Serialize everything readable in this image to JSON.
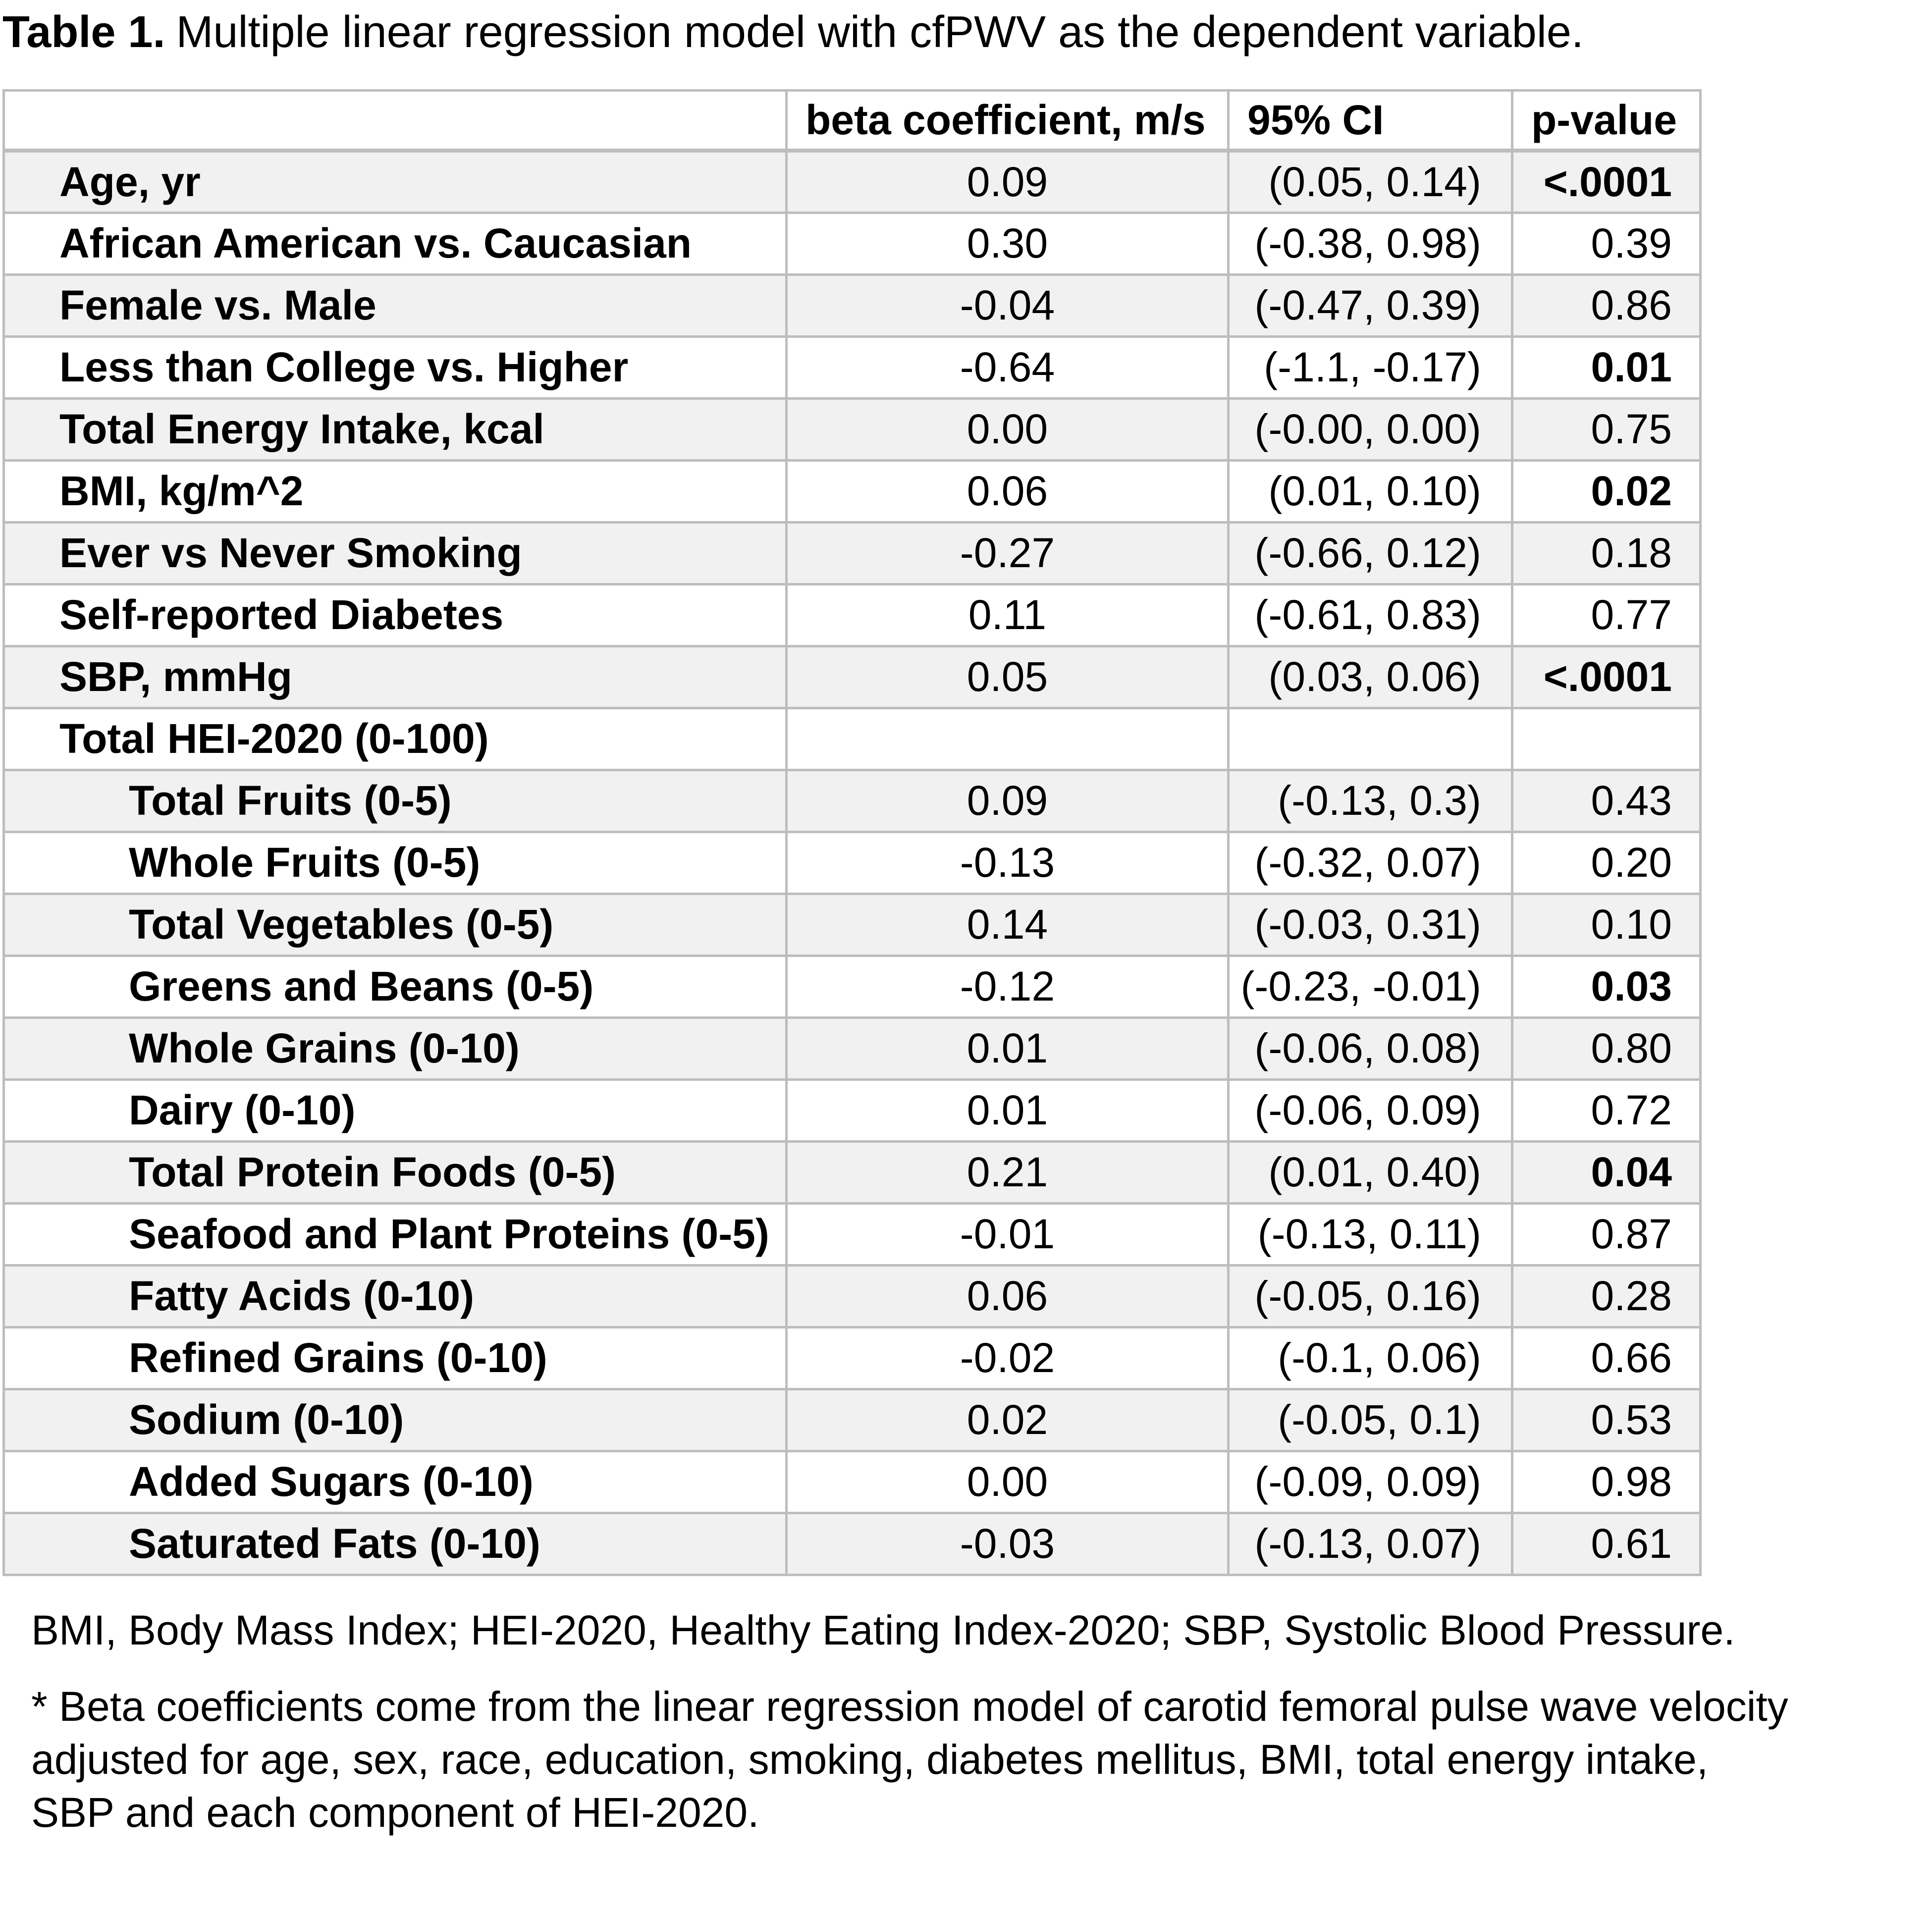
{
  "title": {
    "label": "Table 1.",
    "text": "Multiple linear regression model with cfPWV as the dependent variable."
  },
  "table": {
    "headers": [
      "",
      "beta coefficient, m/s",
      "95% CI",
      "p-value"
    ],
    "rows": [
      {
        "label": "Age, yr",
        "sub": false,
        "beta": "0.09",
        "ci": "(0.05, 0.14)",
        "p": "<.0001",
        "sig": true
      },
      {
        "label": "African American vs. Caucasian",
        "sub": false,
        "beta": "0.30",
        "ci": "(-0.38, 0.98)",
        "p": "0.39",
        "sig": false
      },
      {
        "label": "Female vs. Male",
        "sub": false,
        "beta": "-0.04",
        "ci": "(-0.47, 0.39)",
        "p": "0.86",
        "sig": false
      },
      {
        "label": "Less than College vs. Higher",
        "sub": false,
        "beta": "-0.64",
        "ci": "(-1.1, -0.17)",
        "p": "0.01",
        "sig": true
      },
      {
        "label": "Total Energy Intake, kcal",
        "sub": false,
        "beta": "0.00",
        "ci": "(-0.00, 0.00)",
        "p": "0.75",
        "sig": false
      },
      {
        "label": "BMI, kg/m^2",
        "sub": false,
        "beta": "0.06",
        "ci": "(0.01, 0.10)",
        "p": "0.02",
        "sig": true
      },
      {
        "label": "Ever vs Never Smoking",
        "sub": false,
        "beta": "-0.27",
        "ci": "(-0.66, 0.12)",
        "p": "0.18",
        "sig": false
      },
      {
        "label": "Self-reported Diabetes",
        "sub": false,
        "beta": "0.11",
        "ci": "(-0.61, 0.83)",
        "p": "0.77",
        "sig": false
      },
      {
        "label": "SBP, mmHg",
        "sub": false,
        "beta": "0.05",
        "ci": "(0.03, 0.06)",
        "p": "<.0001",
        "sig": true
      },
      {
        "label": "Total HEI-2020 (0-100)",
        "sub": false,
        "beta": "",
        "ci": "",
        "p": "",
        "sig": false
      },
      {
        "label": "Total Fruits (0-5)",
        "sub": true,
        "beta": "0.09",
        "ci": "(-0.13, 0.3)",
        "p": "0.43",
        "sig": false
      },
      {
        "label": "Whole Fruits (0-5)",
        "sub": true,
        "beta": "-0.13",
        "ci": "(-0.32, 0.07)",
        "p": "0.20",
        "sig": false
      },
      {
        "label": "Total Vegetables (0-5)",
        "sub": true,
        "beta": "0.14",
        "ci": "(-0.03, 0.31)",
        "p": "0.10",
        "sig": false
      },
      {
        "label": "Greens and Beans (0-5)",
        "sub": true,
        "beta": "-0.12",
        "ci": "(-0.23, -0.01)",
        "p": "0.03",
        "sig": true
      },
      {
        "label": "Whole Grains (0-10)",
        "sub": true,
        "beta": "0.01",
        "ci": "(-0.06, 0.08)",
        "p": "0.80",
        "sig": false
      },
      {
        "label": "Dairy (0-10)",
        "sub": true,
        "beta": "0.01",
        "ci": "(-0.06, 0.09)",
        "p": "0.72",
        "sig": false
      },
      {
        "label": "Total Protein Foods (0-5)",
        "sub": true,
        "beta": "0.21",
        "ci": "(0.01, 0.40)",
        "p": "0.04",
        "sig": true
      },
      {
        "label": "Seafood and Plant Proteins (0-5)",
        "sub": true,
        "beta": "-0.01",
        "ci": "(-0.13, 0.11)",
        "p": "0.87",
        "sig": false
      },
      {
        "label": "Fatty Acids (0-10)",
        "sub": true,
        "beta": "0.06",
        "ci": "(-0.05, 0.16)",
        "p": "0.28",
        "sig": false
      },
      {
        "label": "Refined Grains (0-10)",
        "sub": true,
        "beta": "-0.02",
        "ci": "(-0.1, 0.06)",
        "p": "0.66",
        "sig": false
      },
      {
        "label": "Sodium (0-10)",
        "sub": true,
        "beta": "0.02",
        "ci": "(-0.05, 0.1)",
        "p": "0.53",
        "sig": false
      },
      {
        "label": "Added Sugars (0-10)",
        "sub": true,
        "beta": "0.00",
        "ci": "(-0.09, 0.09)",
        "p": "0.98",
        "sig": false
      },
      {
        "label": "Saturated Fats (0-10)",
        "sub": true,
        "beta": "-0.03",
        "ci": "(-0.13, 0.07)",
        "p": "0.61",
        "sig": false
      }
    ]
  },
  "footnotes": {
    "abbreviations": "BMI, Body Mass Index; HEI-2020, Healthy Eating Index-2020; SBP, Systolic Blood Pressure.",
    "beta_note": "* Beta coefficients come from the linear regression model of carotid femoral pulse wave velocity adjusted for age, sex, race, education, smoking, diabetes mellitus, BMI, total energy intake, SBP and each component of HEI-2020."
  },
  "colors": {
    "stripe": "#f1f1f1",
    "border": "#bdbdbd",
    "text": "#000000",
    "background": "#ffffff"
  }
}
